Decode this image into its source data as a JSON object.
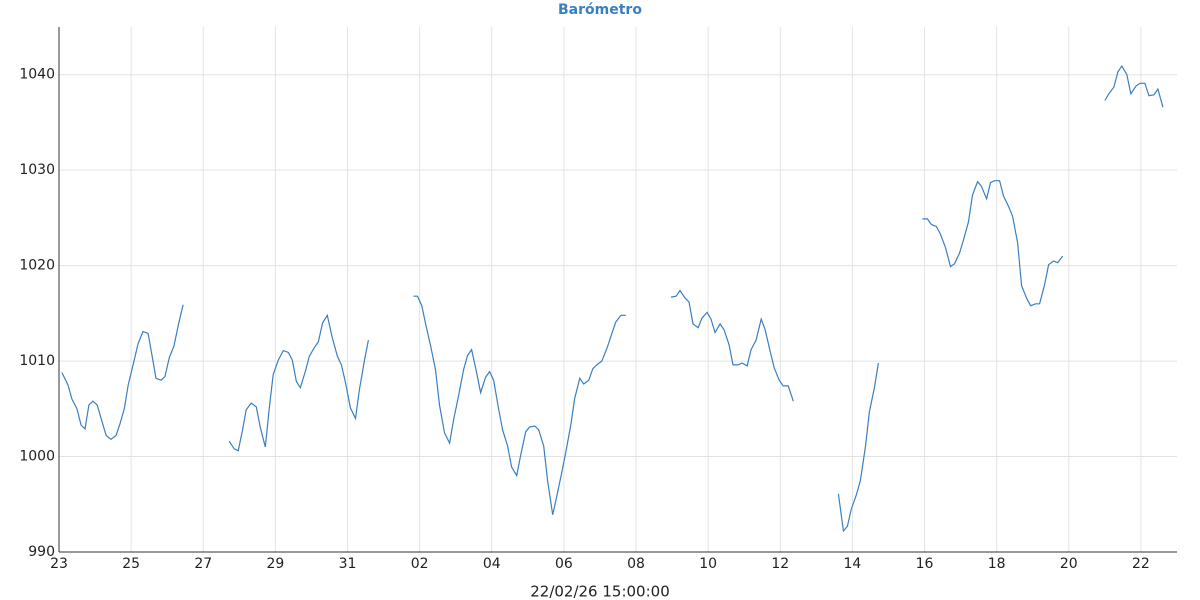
{
  "chart_data": {
    "type": "line",
    "title": "Barómetro",
    "x_label": "22/02/26 15:00:00",
    "x": [
      0.08,
      0.25,
      0.36,
      0.5,
      0.61,
      0.72,
      0.83,
      0.94,
      1.06,
      1.19,
      1.31,
      1.44,
      1.58,
      1.69,
      1.81,
      1.92,
      2.06,
      2.19,
      2.33,
      2.47,
      2.58,
      2.69,
      2.83,
      2.94,
      3.06,
      3.19,
      3.31,
      3.44,
      4.0,
      4.72,
      4.86,
      4.97,
      5.08,
      5.19,
      5.33,
      5.47,
      5.58,
      5.72,
      5.83,
      5.94,
      6.08,
      6.22,
      6.36,
      6.47,
      6.58,
      6.69,
      6.83,
      6.94,
      7.08,
      7.19,
      7.31,
      7.44,
      7.58,
      7.72,
      7.83,
      7.94,
      8.08,
      8.22,
      8.33,
      8.47,
      8.58,
      9.2,
      9.83,
      9.94,
      10.06,
      10.17,
      10.31,
      10.44,
      10.55,
      10.69,
      10.83,
      10.94,
      11.08,
      11.22,
      11.33,
      11.44,
      11.58,
      11.69,
      11.83,
      11.94,
      12.05,
      12.19,
      12.3,
      12.44,
      12.55,
      12.69,
      12.8,
      12.94,
      13.05,
      13.19,
      13.3,
      13.44,
      13.55,
      13.69,
      13.8,
      13.94,
      14.05,
      14.19,
      14.3,
      14.44,
      14.55,
      14.69,
      14.8,
      14.94,
      15.05,
      15.19,
      15.33,
      15.44,
      15.58,
      15.72,
      16.3,
      16.97,
      17.11,
      17.22,
      17.36,
      17.47,
      17.58,
      17.72,
      17.83,
      17.97,
      18.08,
      18.19,
      18.33,
      18.44,
      18.58,
      18.69,
      18.83,
      18.94,
      19.08,
      19.19,
      19.33,
      19.47,
      19.58,
      19.72,
      19.83,
      19.97,
      20.08,
      20.22,
      20.36,
      21.0,
      21.61,
      21.75,
      21.86,
      21.97,
      22.11,
      22.22,
      22.36,
      22.47,
      22.61,
      22.72,
      23.3,
      23.94,
      24.08,
      24.19,
      24.33,
      24.44,
      24.58,
      24.72,
      24.83,
      24.97,
      25.08,
      25.22,
      25.33,
      25.47,
      25.58,
      25.72,
      25.83,
      25.94,
      26.08,
      26.19,
      26.33,
      26.44,
      26.58,
      26.69,
      26.83,
      26.94,
      27.08,
      27.19,
      27.33,
      27.44,
      27.58,
      27.69,
      27.83,
      28.4,
      29,
      29.11,
      29.25,
      29.36,
      29.47,
      29.61,
      29.72,
      29.86,
      29.97,
      30.11,
      30.22,
      30.36,
      30.47,
      30.61
    ],
    "series": [
      {
        "color": "#3a7fc1",
        "values": [
          1008.8,
          1007.5,
          1006,
          1005,
          1003.3,
          1002.9,
          1005.4,
          1005.8,
          1005.4,
          1003.7,
          1002.2,
          1001.8,
          1002.2,
          1003.4,
          1005,
          1007.5,
          1009.7,
          1011.8,
          1013.1,
          1012.9,
          1010.6,
          1008.2,
          1008,
          1008.4,
          1010.4,
          1011.6,
          1013.8,
          1015.9,
          null,
          1001.6,
          1000.8,
          1000.6,
          1002.6,
          1004.9,
          1005.6,
          1005.2,
          1003.1,
          1001,
          1005.1,
          1008.6,
          1010.1,
          1011.1,
          1010.9,
          1010.1,
          1007.9,
          1007.2,
          1008.9,
          1010.5,
          1011.4,
          1012,
          1014,
          1014.8,
          1012.4,
          1010.5,
          1009.6,
          1007.8,
          1005.1,
          1004,
          1007,
          1010.1,
          1012.2,
          null,
          1016.8,
          1016.8,
          1015.8,
          1013.8,
          1011.5,
          1009.1,
          1005.4,
          1002.5,
          1001.4,
          1003.8,
          1006.4,
          1009.1,
          1010.6,
          1011.2,
          1008.8,
          1006.7,
          1008.3,
          1008.9,
          1008,
          1005,
          1002.8,
          1001.1,
          998.9,
          998,
          1000.1,
          1002.6,
          1003.1,
          1003.2,
          1002.8,
          1001.1,
          997.4,
          993.9,
          995.8,
          998.3,
          1000.4,
          1003.3,
          1006.1,
          1008.2,
          1007.6,
          1008,
          1009.2,
          1009.7,
          1010,
          1011.3,
          1012.9,
          1014.1,
          1014.8,
          1014.8,
          null,
          1016.7,
          1016.8,
          1017.4,
          1016.6,
          1016.2,
          1013.9,
          1013.5,
          1014.5,
          1015.1,
          1014.4,
          1013,
          1013.9,
          1013.3,
          1011.7,
          1009.6,
          1009.6,
          1009.8,
          1009.5,
          1011.2,
          1012.2,
          1014.4,
          1013.3,
          1011,
          1009.3,
          1008,
          1007.4,
          1007.4,
          1005.8,
          null,
          996.1,
          992.2,
          992.7,
          994.5,
          996,
          997.5,
          1001,
          1004.7,
          1007.2,
          1009.8,
          null,
          1024.9,
          1024.9,
          1024.3,
          1024.1,
          1023.3,
          1021.9,
          1019.9,
          1020.2,
          1021.3,
          1022.7,
          1024.6,
          1027.4,
          1028.8,
          1028.3,
          1027,
          1028.7,
          1028.9,
          1028.9,
          1027.3,
          1026.2,
          1025.2,
          1022.4,
          1017.9,
          1016.6,
          1015.8,
          1016,
          1016,
          1018,
          1020.1,
          1020.5,
          1020.3,
          1021,
          null,
          1037.3,
          1038,
          1038.7,
          1040.3,
          1040.9,
          1040,
          1038,
          1038.8,
          1039.1,
          1039.1,
          1037.8,
          1037.9,
          1038.5,
          1036.6
        ]
      }
    ],
    "xlim": [
      0,
      31
    ],
    "xticks": [
      {
        "value": 0,
        "label": "23"
      },
      {
        "value": 2,
        "label": "25"
      },
      {
        "value": 4,
        "label": "27"
      },
      {
        "value": 6,
        "label": "29"
      },
      {
        "value": 8,
        "label": "31"
      },
      {
        "value": 10,
        "label": "02"
      },
      {
        "value": 12,
        "label": "04"
      },
      {
        "value": 14,
        "label": "06"
      },
      {
        "value": 16,
        "label": "08"
      },
      {
        "value": 18,
        "label": "10"
      },
      {
        "value": 20,
        "label": "12"
      },
      {
        "value": 22,
        "label": "14"
      },
      {
        "value": 24,
        "label": "16"
      },
      {
        "value": 26,
        "label": "18"
      },
      {
        "value": 28,
        "label": "20"
      },
      {
        "value": 30,
        "label": "22"
      }
    ],
    "ylim": [
      990,
      1045
    ],
    "yticks": [
      990,
      1000,
      1010,
      1020,
      1030,
      1040
    ],
    "grid": true
  }
}
